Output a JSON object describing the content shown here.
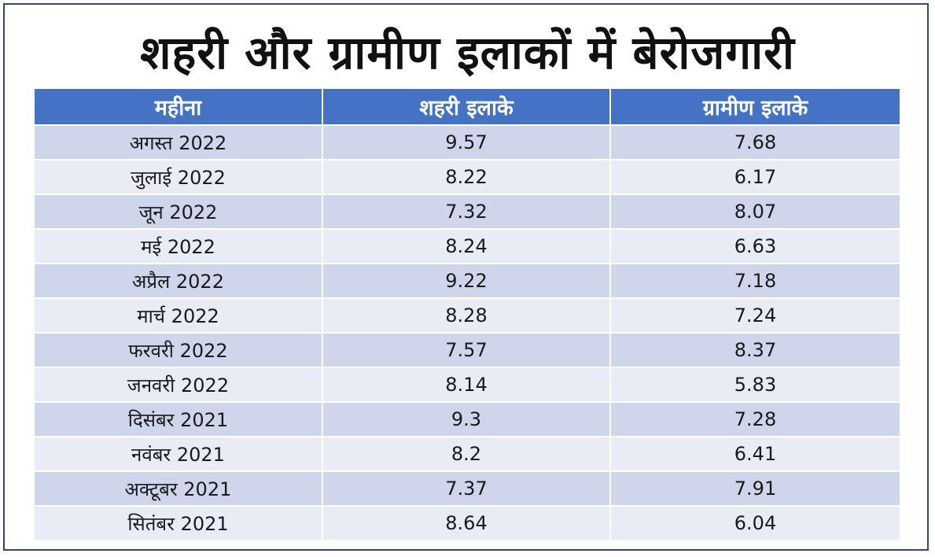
{
  "title": "शहरी और ग्रामीण इलाकों में बेरोजगारी",
  "chart_data": {
    "type": "table",
    "columns": [
      "महीना",
      "शहरी इलाके",
      "ग्रामीण इलाके"
    ],
    "rows": [
      [
        "अगस्त 2022",
        "9.57",
        "7.68"
      ],
      [
        "जुलाई 2022",
        "8.22",
        "6.17"
      ],
      [
        "जून 2022",
        "7.32",
        "8.07"
      ],
      [
        "मई 2022",
        "8.24",
        "6.63"
      ],
      [
        "अप्रैल 2022",
        "9.22",
        "7.18"
      ],
      [
        "मार्च 2022",
        "8.28",
        "7.24"
      ],
      [
        "फरवरी 2022",
        "7.57",
        "8.37"
      ],
      [
        "जनवरी 2022",
        "8.14",
        "5.83"
      ],
      [
        "दिसंबर 2021",
        "9.3",
        "7.28"
      ],
      [
        "नवंबर 2021",
        "8.2",
        "6.41"
      ],
      [
        "अक्टूबर 2021",
        "7.37",
        "7.91"
      ],
      [
        "सितंबर 2021",
        "8.64",
        "6.04"
      ]
    ]
  },
  "colors": {
    "header_bg": "#4472c4",
    "row_odd_bg": "#cfd5ea",
    "row_even_bg": "#e9ebf5",
    "frame_border": "#2b4a7e"
  }
}
